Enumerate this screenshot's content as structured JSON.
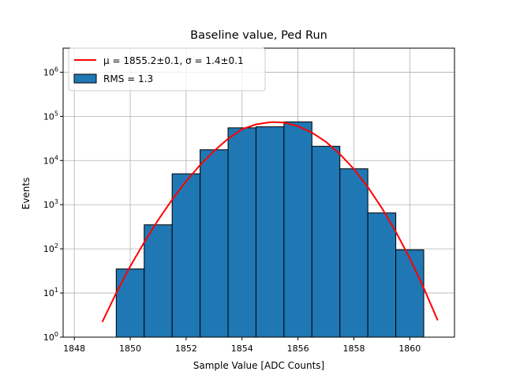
{
  "chart_data": {
    "type": "bar",
    "title": "Baseline value, Ped Run",
    "xlabel": "Sample Value [ADC Counts]",
    "ylabel": "Events",
    "yscale": "log",
    "xlim": [
      1847.6,
      1861.6
    ],
    "ylim": [
      1,
      3500000
    ],
    "grid": true,
    "legend_position": "top-left",
    "x_ticks": [
      1848,
      1850,
      1852,
      1854,
      1856,
      1858,
      1860
    ],
    "y_ticks": [
      {
        "value": 1,
        "label": "10^0"
      },
      {
        "value": 10,
        "label": "10^1"
      },
      {
        "value": 100,
        "label": "10^2"
      },
      {
        "value": 1000,
        "label": "10^3"
      },
      {
        "value": 10000,
        "label": "10^4"
      },
      {
        "value": 100000,
        "label": "10^5"
      },
      {
        "value": 1000000,
        "label": "10^6"
      }
    ],
    "histogram": {
      "name": "RMS = 1.3",
      "color": "#1f77b4",
      "edge_color": "#000000",
      "bin_edges": [
        1848.5,
        1849.5,
        1850.5,
        1851.5,
        1852.5,
        1853.5,
        1854.5,
        1855.5,
        1856.5,
        1857.5,
        1858.5,
        1859.5,
        1860.5
      ],
      "counts": [
        1,
        35,
        350,
        5000,
        17500,
        55000,
        58000,
        75000,
        21000,
        6500,
        650,
        95
      ]
    },
    "fit": {
      "name": "μ = 1855.2±0.1, σ = 1.4±0.1",
      "color": "#ff0000",
      "x": [
        1849.0,
        1849.5,
        1850.0,
        1850.5,
        1851.0,
        1851.5,
        1852.0,
        1852.5,
        1853.0,
        1853.5,
        1854.0,
        1854.5,
        1855.0,
        1855.2,
        1855.5,
        1856.0,
        1856.5,
        1857.0,
        1857.5,
        1858.0,
        1858.5,
        1859.0,
        1859.5,
        1860.0,
        1860.5,
        1861.0
      ],
      "y": [
        2.2,
        10,
        40,
        140,
        450,
        1300,
        3400,
        7900,
        16500,
        31000,
        51000,
        66000,
        73500,
        74000,
        72000,
        60000,
        43000,
        26500,
        14000,
        6400,
        2500,
        840,
        245,
        61,
        13,
        2.4
      ]
    }
  }
}
